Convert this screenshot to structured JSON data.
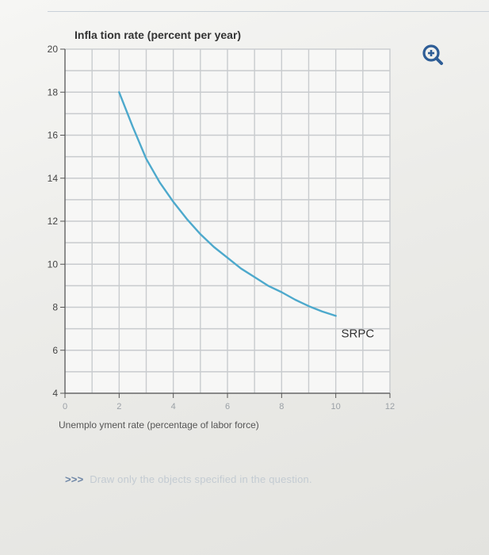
{
  "chart_data": {
    "type": "line",
    "title": "Infla tion rate (percent per year)",
    "xlabel": "Unemplo yment rate (percentage of labor force)",
    "ylabel": "Infla tion rate (percent per year)",
    "xlim": [
      0,
      12
    ],
    "ylim": [
      4,
      20
    ],
    "x_ticks": [
      0,
      2,
      4,
      6,
      8,
      10,
      12
    ],
    "y_ticks": [
      4,
      6,
      8,
      10,
      12,
      14,
      16,
      18,
      20
    ],
    "grid": true,
    "series": [
      {
        "name": "SRPC",
        "color": "#4da9cc",
        "x": [
          2.0,
          2.5,
          3.0,
          3.5,
          4.0,
          4.5,
          5.0,
          5.5,
          6.0,
          6.5,
          7.0,
          7.5,
          8.0,
          8.5,
          9.0,
          9.5,
          10.0
        ],
        "y": [
          18.0,
          16.4,
          14.9,
          13.8,
          12.9,
          12.1,
          11.4,
          10.8,
          10.3,
          9.8,
          9.4,
          9.0,
          8.7,
          8.35,
          8.05,
          7.8,
          7.6
        ]
      }
    ],
    "annotations": [
      {
        "text": "SRPC",
        "x": 10.2,
        "y": 6.6
      }
    ]
  },
  "zoom_icon": "zoom-in-icon",
  "instruction": {
    "prompt": ">>>",
    "text": "Draw only the objects specified in the question."
  }
}
